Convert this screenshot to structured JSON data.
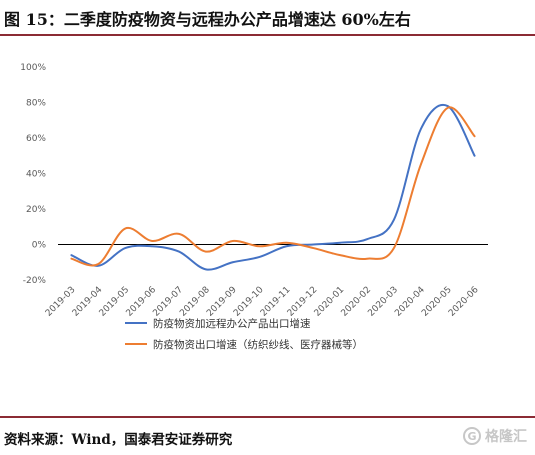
{
  "title": "图 15：二季度防疫物资与远程办公产品增速达 60%左右",
  "source": "资料来源：Wind，国泰君安证券研究",
  "watermark": {
    "icon": "gelonghui-logo-icon",
    "text": "格隆汇"
  },
  "colors": {
    "series1": "#4472c4",
    "series2": "#ed7d31",
    "axis": "#000000",
    "rule": "#8b2b34"
  },
  "chart_data": {
    "type": "line",
    "title": "",
    "xlabel": "",
    "ylabel": "",
    "ylim": [
      -20,
      100
    ],
    "y_ticks": [
      -20,
      0,
      20,
      40,
      60,
      80,
      100
    ],
    "y_tick_labels": [
      "-20%",
      "0%",
      "20%",
      "40%",
      "60%",
      "80%",
      "100%"
    ],
    "grid": false,
    "legend_position": "bottom",
    "categories": [
      "2019-03",
      "2019-04",
      "2019-05",
      "2019-06",
      "2019-07",
      "2019-08",
      "2019-09",
      "2019-10",
      "2019-11",
      "2019-12",
      "2020-01",
      "2020-02",
      "2020-03",
      "2020-04",
      "2020-05",
      "2020-06"
    ],
    "series": [
      {
        "name": "防疫物资加远程办公产品出口增速",
        "color": "#4472c4",
        "values": [
          -6,
          -12,
          -2,
          -1,
          -4,
          -14,
          -10,
          -7,
          -1,
          0,
          1,
          3,
          14,
          65,
          78,
          50
        ]
      },
      {
        "name": "防疫物资出口增速（纺织纱线、医疗器械等）",
        "color": "#ed7d31",
        "values": [
          -8,
          -11,
          9,
          2,
          6,
          -4,
          2,
          -1,
          1,
          -2,
          -6,
          -8,
          -2,
          45,
          77,
          61
        ]
      }
    ]
  }
}
